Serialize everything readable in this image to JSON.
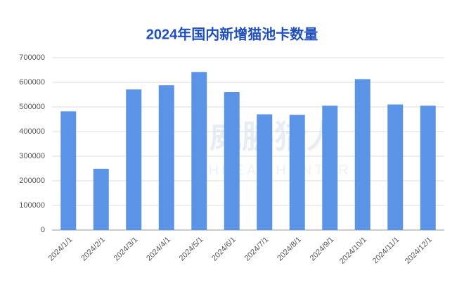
{
  "chart_data": {
    "type": "bar",
    "title": "2024年国内新增猫池卡数量",
    "categories": [
      "2024/1/1",
      "2024/2/1",
      "2024/3/1",
      "2024/4/1",
      "2024/5/1",
      "2024/6/1",
      "2024/7/1",
      "2024/8/1",
      "2024/9/1",
      "2024/10/1",
      "2024/11/1",
      "2024/12/1"
    ],
    "values": [
      482000,
      249000,
      571000,
      588000,
      642000,
      560000,
      470000,
      468000,
      505000,
      613000,
      510000,
      505000
    ],
    "color": "#5b93e6",
    "ylim": [
      0,
      700000
    ],
    "yticks": [
      0,
      100000,
      200000,
      300000,
      400000,
      500000,
      600000,
      700000
    ],
    "grid": true,
    "watermark": "威胁猎人",
    "watermark_sub": "THREAT HUNTER"
  }
}
